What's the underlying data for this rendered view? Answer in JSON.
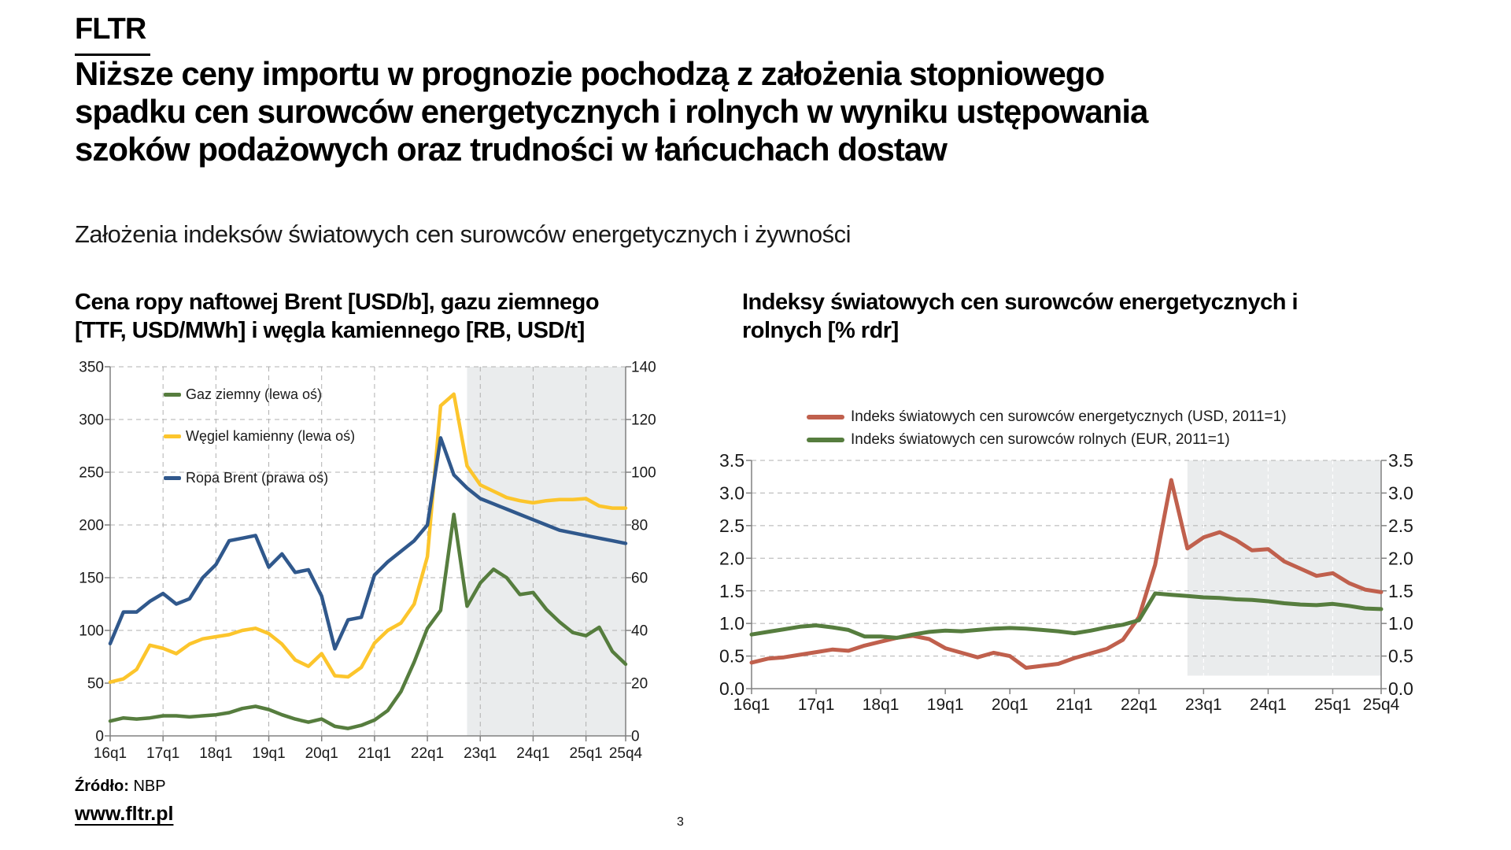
{
  "slide": {
    "brand": "FLTR",
    "title_lines": [
      "Niższe ceny importu w prognozie pochodzą z założenia stopniowego",
      "spadku cen surowców energetycznych i rolnych w wyniku ustępowania",
      "szoków podażowych oraz trudności w łańcuchach dostaw"
    ],
    "subtitle": "Założenia indeksów światowych cen surowców energetycznych i żywności",
    "footer": {
      "source_label": "Źródło:",
      "source_value": "NBP",
      "website": "www.fltr.pl",
      "page_number": "3"
    }
  },
  "charts": {
    "left": {
      "heading_lines": [
        "Cena ropy naftowej Brent [USD/b], gazu ziemnego",
        "[TTF, USD/MWh] i węgla kamiennego [RB, USD/t]"
      ]
    },
    "right": {
      "heading_lines": [
        "Indeksy światowych cen surowców energetycznych i",
        "rolnych [% rdr]"
      ]
    }
  },
  "chart_data": [
    {
      "type": "line",
      "title": "Cena ropy naftowej Brent [USD/b], gazu ziemnego [TTF, USD/MWh] i węgla kamiennego [RB, USD/t]",
      "x_range": "16q1–25q4 (kwartalnie, 40 obserwacji)",
      "x_ticks": [
        {
          "label": "16q1",
          "index": 0
        },
        {
          "label": "17q1",
          "index": 4
        },
        {
          "label": "18q1",
          "index": 8
        },
        {
          "label": "19q1",
          "index": 12
        },
        {
          "label": "20q1",
          "index": 16
        },
        {
          "label": "21q1",
          "index": 20
        },
        {
          "label": "22q1",
          "index": 24
        },
        {
          "label": "23q1",
          "index": 28
        },
        {
          "label": "24q1",
          "index": 32
        },
        {
          "label": "25q1",
          "index": 36
        },
        {
          "label": "25q4",
          "index": 39
        }
      ],
      "ylim_left": [
        0,
        350
      ],
      "ylim_right": [
        0,
        140
      ],
      "y_ticks_left": [
        "0",
        "50",
        "100",
        "150",
        "200",
        "250",
        "300",
        "350"
      ],
      "y_ticks_right": [
        "0",
        "20",
        "40",
        "60",
        "80",
        "100",
        "120",
        "140"
      ],
      "forecast_start_index": 27,
      "shade_color": "#EAECED",
      "vgrid": "gray",
      "series": [
        {
          "id": "gaz-ziemny",
          "name": "Gaz ziemny (lewa oś)",
          "axis": "left",
          "color": "#567D3E",
          "values": [
            14,
            17,
            16,
            17,
            19,
            19,
            18,
            19,
            20,
            22,
            26,
            28,
            25,
            20,
            16,
            13,
            16,
            9,
            7,
            10,
            15,
            24,
            42,
            70,
            102,
            119,
            210,
            123,
            145,
            158,
            150,
            134,
            136,
            120,
            108,
            98,
            95,
            103,
            80,
            68
          ]
        },
        {
          "id": "wegiel-kamienny",
          "name": "Węgiel kamienny (lewa oś)",
          "axis": "left",
          "color": "#FCC52C",
          "values": [
            51,
            54,
            63,
            86,
            83,
            78,
            87,
            92,
            94,
            96,
            100,
            102,
            97,
            87,
            72,
            66,
            78,
            57,
            56,
            65,
            88,
            100,
            107,
            125,
            170,
            313,
            324,
            256,
            238,
            232,
            226,
            223,
            221,
            223,
            224,
            224,
            225,
            218,
            216,
            216
          ]
        },
        {
          "id": "ropa-brent",
          "name": "Ropa Brent (prawa oś)",
          "axis": "right",
          "color": "#30588C",
          "values": [
            35,
            47,
            47,
            51,
            54,
            50,
            52,
            60,
            65,
            74,
            75,
            76,
            64,
            69,
            62,
            63,
            53,
            33,
            44,
            45,
            61,
            66,
            70,
            74,
            80,
            113,
            99,
            94,
            90,
            88,
            86,
            84,
            82,
            80,
            78,
            77,
            76,
            75,
            74,
            73
          ]
        }
      ]
    },
    {
      "type": "line",
      "title": "Indeksy światowych cen surowców energetycznych i rolnych [% rdr]",
      "x_range": "16q1–25q4 (kwartalnie, 40 obserwacji)",
      "x_ticks": [
        {
          "label": "16q1",
          "index": 0
        },
        {
          "label": "17q1",
          "index": 4
        },
        {
          "label": "18q1",
          "index": 8
        },
        {
          "label": "19q1",
          "index": 12
        },
        {
          "label": "20q1",
          "index": 16
        },
        {
          "label": "21q1",
          "index": 20
        },
        {
          "label": "22q1",
          "index": 24
        },
        {
          "label": "23q1",
          "index": 28
        },
        {
          "label": "24q1",
          "index": 32
        },
        {
          "label": "25q1",
          "index": 36
        },
        {
          "label": "25q4",
          "index": 39
        }
      ],
      "ylim_left": [
        0,
        3.5
      ],
      "ylim_right": [
        0,
        3.5
      ],
      "y_ticks_left": [
        "0.0",
        "0.5",
        "1.0",
        "1.5",
        "2.0",
        "2.5",
        "3.0",
        "3.5"
      ],
      "y_ticks_right": [
        "0.0",
        "0.5",
        "1.0",
        "1.5",
        "2.0",
        "2.5",
        "3.0",
        "3.5"
      ],
      "forecast_start_index": 27,
      "shade_color": "#EAECED",
      "shade_bottom_value": 0.2,
      "vgrid": "white-shade",
      "series": [
        {
          "id": "indeks-energetyczny",
          "name": "Indeks światowych cen surowców energetycznych (USD, 2011=1)",
          "axis": "left",
          "color": "#C0604D",
          "values": [
            0.4,
            0.46,
            0.48,
            0.52,
            0.56,
            0.6,
            0.58,
            0.66,
            0.72,
            0.78,
            0.81,
            0.76,
            0.62,
            0.55,
            0.48,
            0.55,
            0.5,
            0.32,
            0.35,
            0.38,
            0.47,
            0.54,
            0.61,
            0.75,
            1.1,
            1.9,
            3.2,
            2.15,
            2.32,
            2.4,
            2.28,
            2.12,
            2.14,
            1.95,
            1.84,
            1.73,
            1.77,
            1.62,
            1.52,
            1.48
          ]
        },
        {
          "id": "indeks-rolny",
          "name": "Indeks światowych cen surowców rolnych (EUR, 2011=1)",
          "axis": "left",
          "color": "#567D3E",
          "values": [
            0.83,
            0.87,
            0.91,
            0.95,
            0.97,
            0.94,
            0.9,
            0.8,
            0.8,
            0.78,
            0.83,
            0.87,
            0.89,
            0.88,
            0.9,
            0.92,
            0.93,
            0.92,
            0.9,
            0.88,
            0.85,
            0.89,
            0.94,
            0.98,
            1.05,
            1.46,
            1.44,
            1.42,
            1.4,
            1.39,
            1.37,
            1.36,
            1.34,
            1.31,
            1.29,
            1.28,
            1.3,
            1.27,
            1.23,
            1.22
          ]
        }
      ]
    }
  ]
}
